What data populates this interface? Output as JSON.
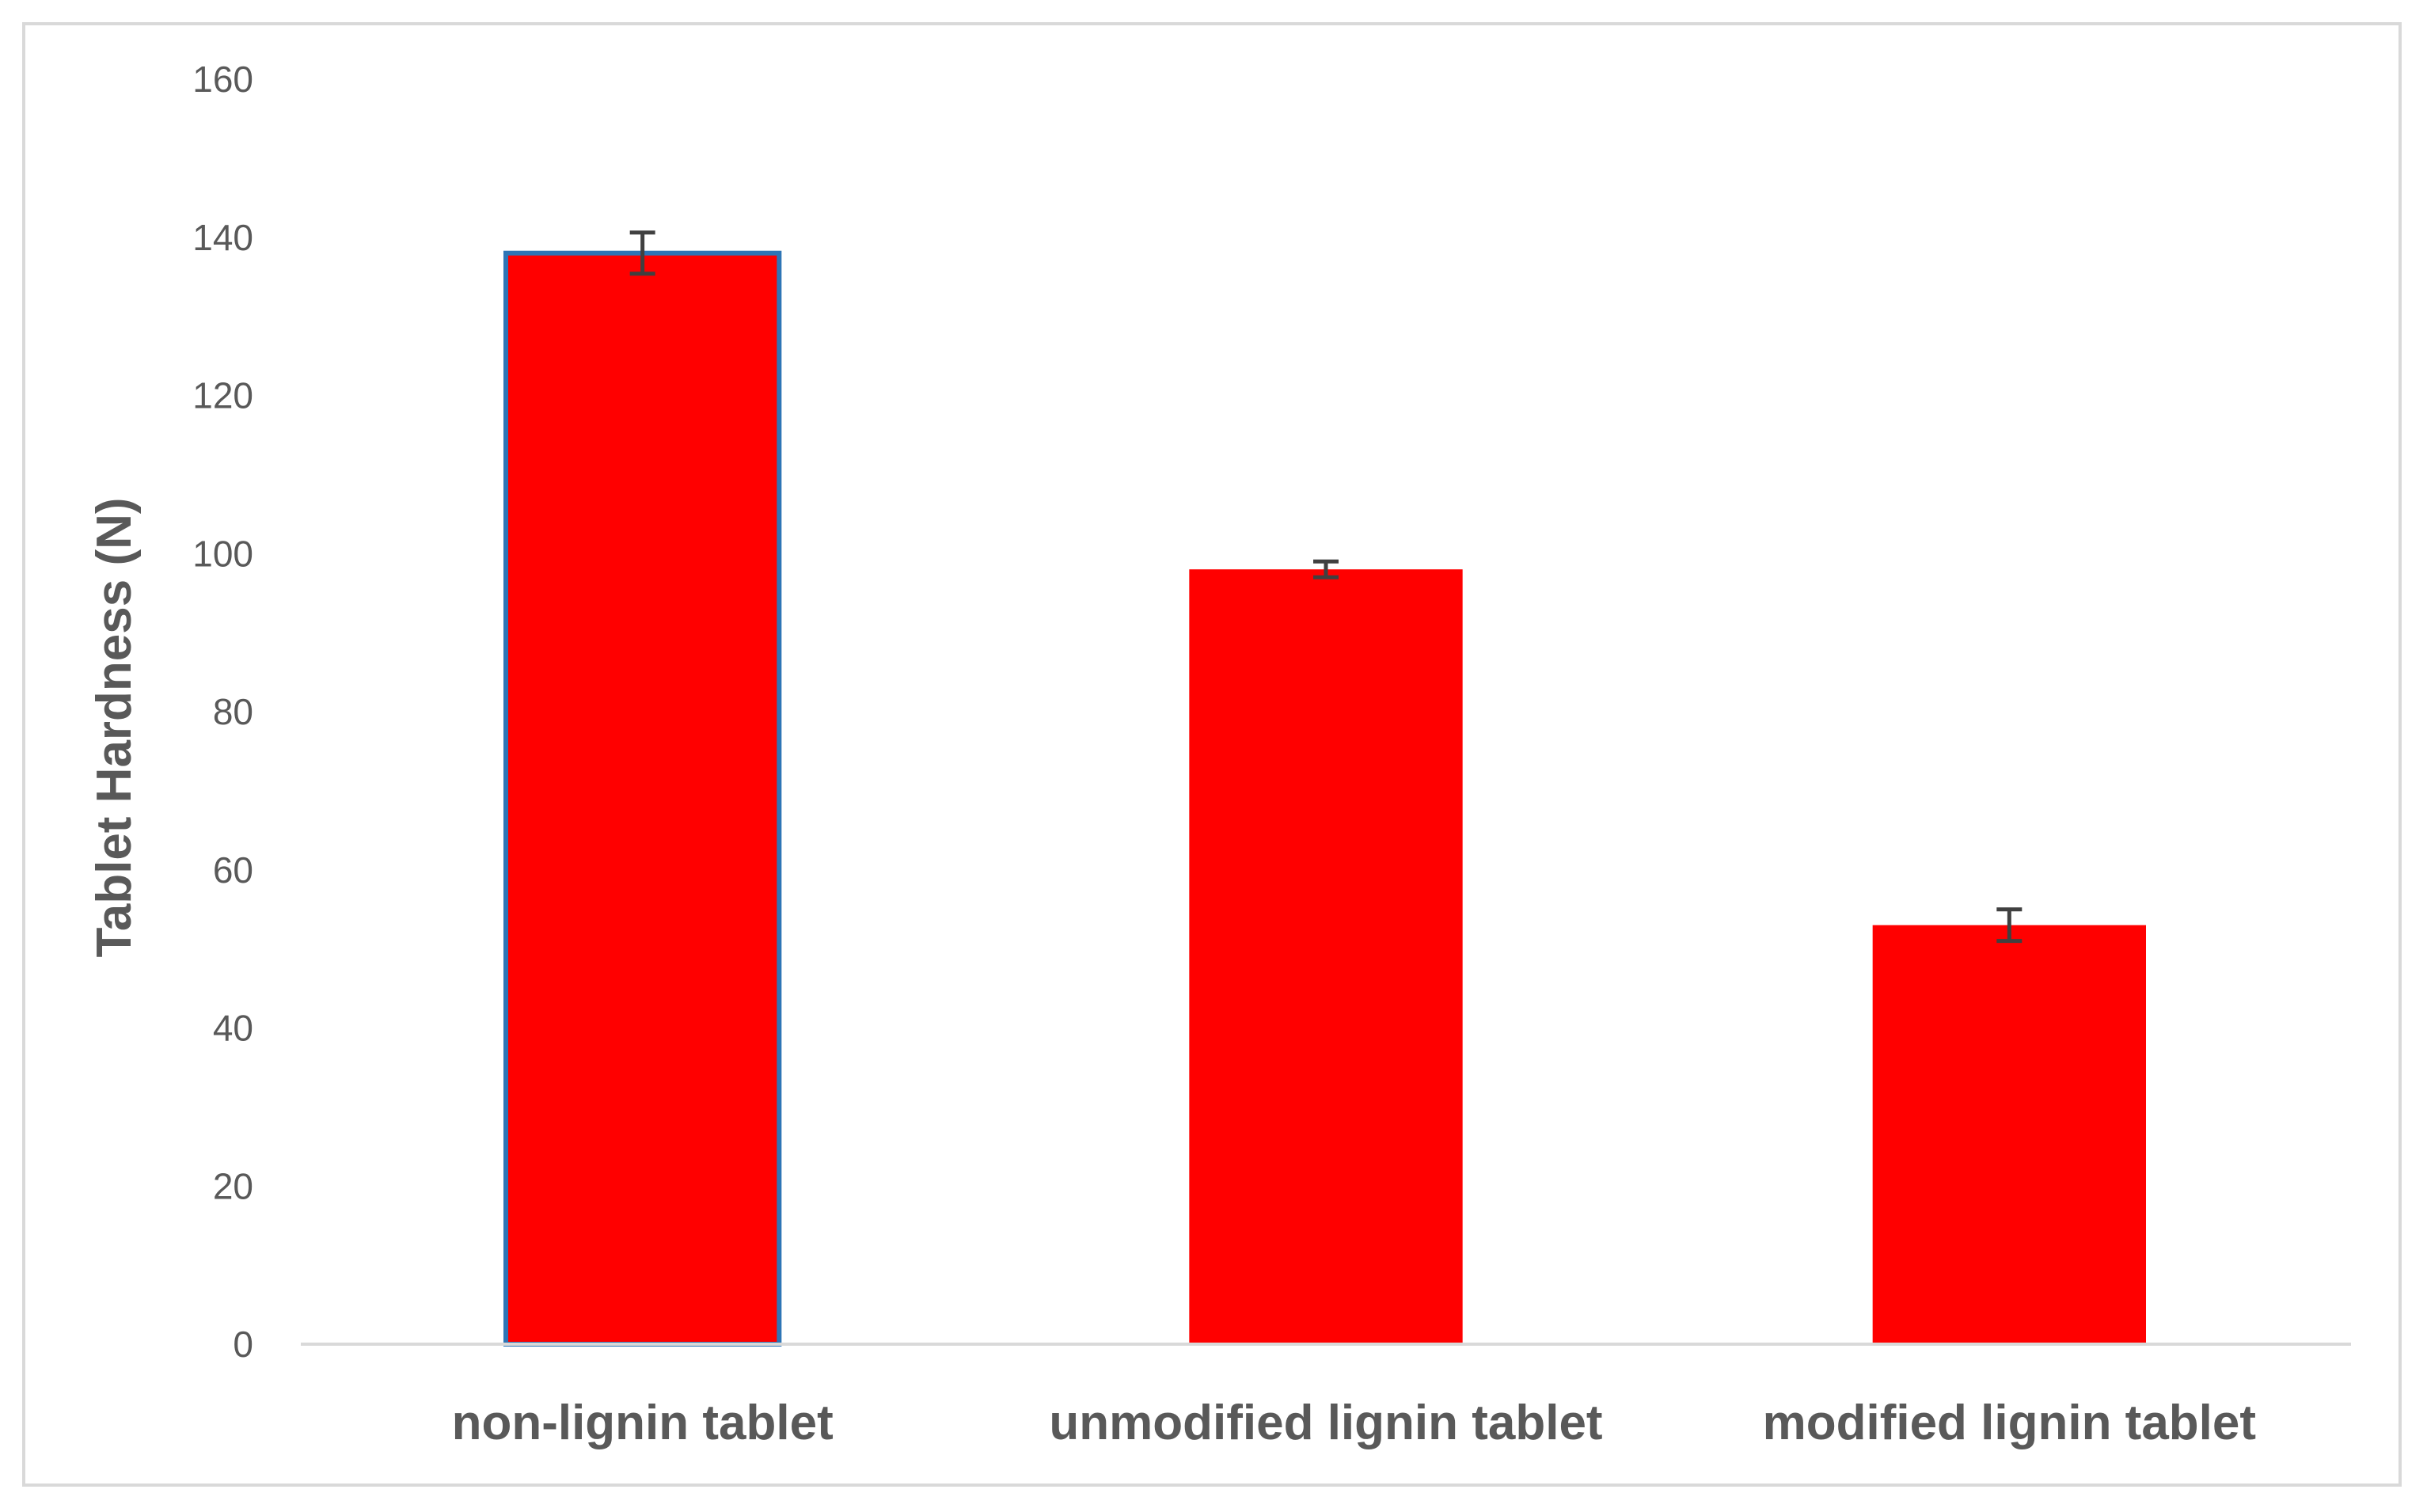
{
  "chart_data": {
    "type": "bar",
    "title": "",
    "xlabel": "",
    "ylabel": "Tablet Hardness (N)",
    "categories": [
      "non-lignin tablet",
      "unmodified lignin tablet",
      "modified lignin tablet"
    ],
    "values": [
      138,
      98,
      53
    ],
    "error": [
      2.6,
      1.0,
      2.0
    ],
    "ylim": [
      0,
      160
    ],
    "yticks": [
      0,
      20,
      40,
      60,
      80,
      100,
      120,
      140,
      160
    ],
    "grid": false,
    "legend": "none",
    "colors": {
      "bar_fill": "#ff0000",
      "first_bar_outline": "#2e75b6",
      "error_bar": "#404040",
      "axis": "#d9d9d9",
      "text": "#595959"
    }
  }
}
